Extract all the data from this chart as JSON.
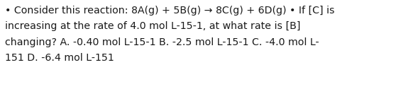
{
  "text_lines": [
    "• Consider this reaction: 8A(g) + 5B(g) → 8C(g) + 6D(g) • If [C] is",
    "increasing at the rate of 4.0 mol L-15-1, at what rate is [B]",
    "changing? A. -0.40 mol L-15-1 B. -2.5 mol L-15-1 C. -4.0 mol L-",
    "151 D. -6.4 mol L-151"
  ],
  "background_color": "#ffffff",
  "text_color": "#1a1a1a",
  "font_size": 10.2,
  "font_family": "DejaVu Sans",
  "fig_width": 5.58,
  "fig_height": 1.26,
  "dpi": 100
}
